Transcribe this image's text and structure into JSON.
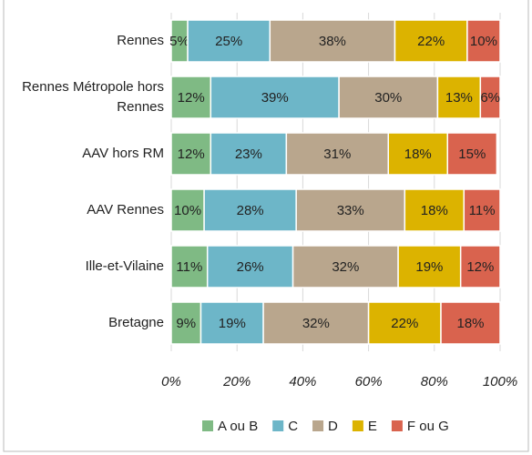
{
  "chart_data": {
    "type": "stacked-bar-horizontal",
    "categories": [
      "Rennes",
      "Rennes Métropole hors Rennes",
      "AAV hors RM",
      "AAV Rennes",
      "Ille-et-Vilaine",
      "Bretagne"
    ],
    "series": [
      {
        "name": "A ou B",
        "color": "#7fba84",
        "values": [
          5,
          12,
          12,
          10,
          11,
          9
        ],
        "value_labels": [
          "5%",
          "12%",
          "12%",
          "10%",
          "11%",
          "9%"
        ]
      },
      {
        "name": "C",
        "color": "#6db6c8",
        "values": [
          25,
          39,
          23,
          28,
          26,
          19
        ],
        "value_labels": [
          "25%",
          "39%",
          "23%",
          "28%",
          "26%",
          "19%"
        ]
      },
      {
        "name": "D",
        "color": "#b9a68d",
        "values": [
          38,
          30,
          31,
          33,
          32,
          32
        ],
        "value_labels": [
          "38%",
          "30%",
          "31%",
          "33%",
          "32%",
          "32%"
        ]
      },
      {
        "name": "E",
        "color": "#dcb300",
        "values": [
          22,
          13,
          18,
          18,
          19,
          22
        ],
        "value_labels": [
          "22%",
          "13%",
          "18%",
          "18%",
          "19%",
          "22%"
        ]
      },
      {
        "name": "F ou G",
        "color": "#d9634e",
        "values": [
          10,
          6,
          15,
          11,
          12,
          18
        ],
        "value_labels": [
          "10%",
          "6%",
          "15%",
          "11%",
          "12%",
          "18%"
        ]
      }
    ],
    "xlim": [
      0,
      100
    ],
    "xticks": [
      {
        "value": 0,
        "label": "0%"
      },
      {
        "value": 20,
        "label": "20%"
      },
      {
        "value": 40,
        "label": "40%"
      },
      {
        "value": 60,
        "label": "60%"
      },
      {
        "value": 80,
        "label": "80%"
      },
      {
        "value": 100,
        "label": "100%"
      }
    ],
    "grid": true,
    "legend": "bottom"
  }
}
